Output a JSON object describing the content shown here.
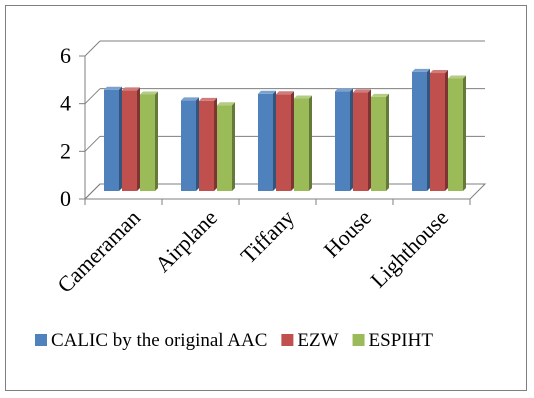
{
  "chart_data": {
    "type": "bar",
    "style": "3d-clustered-column",
    "categories": [
      "Cameraman",
      "Airplane",
      "Tiffany",
      "House",
      "Lighthouse"
    ],
    "series": [
      {
        "name": "CALIC by the original AAC",
        "values": [
          4.25,
          3.8,
          4.08,
          4.18,
          5.0
        ],
        "color": "#4f81bd"
      },
      {
        "name": "EZW",
        "values": [
          4.22,
          3.78,
          4.06,
          4.14,
          4.95
        ],
        "color": "#c0504d"
      },
      {
        "name": "ESPIHT",
        "values": [
          4.05,
          3.6,
          3.88,
          3.95,
          4.72
        ],
        "color": "#9bbb59"
      }
    ],
    "yticks": [
      "0",
      "2",
      "4",
      "6"
    ],
    "ylim": [
      0,
      6
    ],
    "grid": true,
    "legend_position": "bottom"
  }
}
